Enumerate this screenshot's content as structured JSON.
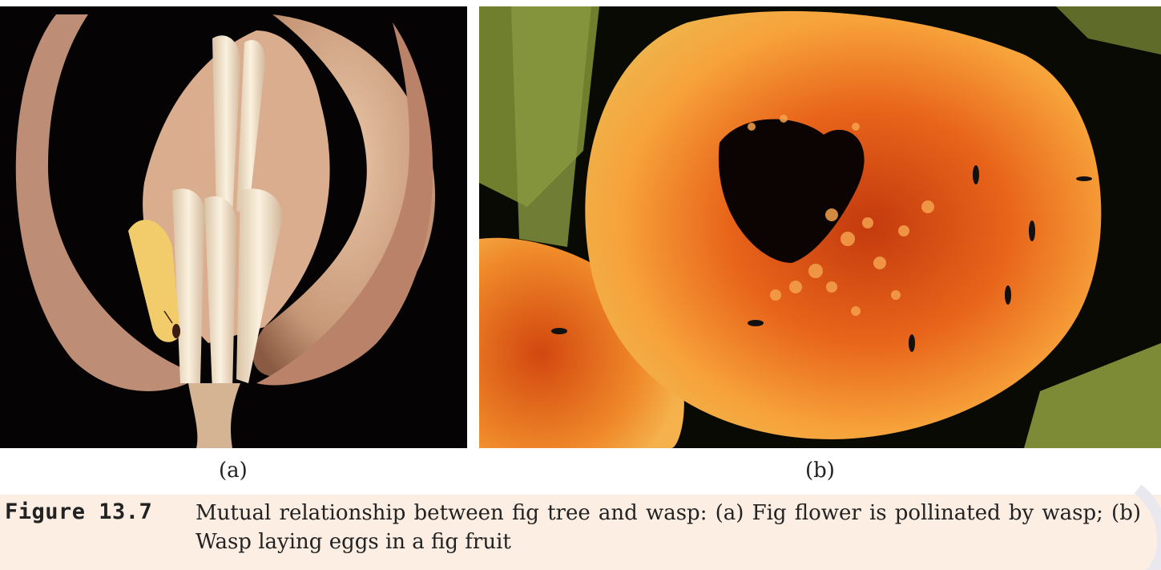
{
  "figure": {
    "panel_a_label": "(a)",
    "panel_b_label": "(b)",
    "caption_number": "Figure 13.7",
    "caption_text": "Mutual relationship between fig tree and wasp: (a) Fig flower is pollinated by wasp; (b) Wasp laying eggs in a fig fruit"
  }
}
